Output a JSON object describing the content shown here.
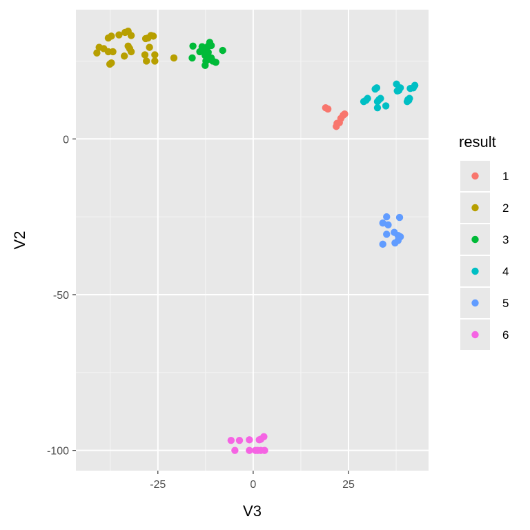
{
  "chart_data": {
    "type": "scatter",
    "xlabel": "V3",
    "ylabel": "V2",
    "xlim": [
      -46.5,
      46
    ],
    "ylim": [
      -106.5,
      41.5
    ],
    "x_ticks": [
      -25,
      0,
      25
    ],
    "x_tick_labels": [
      "-25",
      "0",
      "25"
    ],
    "y_ticks": [
      -100,
      -50,
      0
    ],
    "y_tick_labels": [
      "-100",
      "-50",
      "0"
    ],
    "grid": true,
    "panel_background": "#e8e8e8",
    "legend": {
      "title": "result",
      "placement": "right",
      "entries": [
        "1",
        "2",
        "3",
        "4",
        "5",
        "6"
      ]
    },
    "series": [
      {
        "name": "1",
        "color": "#f8766d",
        "points": [
          [
            19.0,
            10.0
          ],
          [
            19.6,
            9.6
          ],
          [
            22.0,
            5.0
          ],
          [
            21.8,
            4.0
          ],
          [
            23.0,
            6.6
          ],
          [
            23.6,
            7.6
          ],
          [
            24.0,
            8.0
          ],
          [
            22.6,
            5.2
          ]
        ]
      },
      {
        "name": "2",
        "color": "#b79f00",
        "points": [
          [
            -41.0,
            27.6
          ],
          [
            -40.4,
            29.4
          ],
          [
            -39.2,
            29.0
          ],
          [
            -38.0,
            32.4
          ],
          [
            -37.2,
            33.0
          ],
          [
            -38.0,
            28.0
          ],
          [
            -36.8,
            28.0
          ],
          [
            -37.2,
            24.4
          ],
          [
            -37.6,
            24.0
          ],
          [
            -35.2,
            33.4
          ],
          [
            -33.6,
            34.2
          ],
          [
            -32.8,
            34.6
          ],
          [
            -33.8,
            26.6
          ],
          [
            -32.8,
            29.8
          ],
          [
            -32.4,
            29.0
          ],
          [
            -32.0,
            28.0
          ],
          [
            -32.0,
            33.2
          ],
          [
            -28.2,
            32.2
          ],
          [
            -27.6,
            32.4
          ],
          [
            -26.8,
            33.2
          ],
          [
            -26.2,
            33.0
          ],
          [
            -28.4,
            27.0
          ],
          [
            -28.0,
            25.0
          ],
          [
            -27.2,
            29.4
          ],
          [
            -25.8,
            27.0
          ],
          [
            -25.8,
            25.0
          ],
          [
            -20.8,
            26.0
          ]
        ]
      },
      {
        "name": "3",
        "color": "#00ba38",
        "points": [
          [
            -15.8,
            29.8
          ],
          [
            -16.0,
            26.0
          ],
          [
            -14.0,
            28.0
          ],
          [
            -13.4,
            29.6
          ],
          [
            -12.4,
            29.0
          ],
          [
            -11.8,
            29.8
          ],
          [
            -11.4,
            31.0
          ],
          [
            -11.0,
            30.0
          ],
          [
            -13.0,
            28.6
          ],
          [
            -12.6,
            26.8
          ],
          [
            -11.8,
            27.8
          ],
          [
            -12.4,
            25.0
          ],
          [
            -12.0,
            25.4
          ],
          [
            -12.6,
            23.6
          ],
          [
            -11.0,
            26.0
          ],
          [
            -10.6,
            25.0
          ],
          [
            -9.8,
            24.6
          ],
          [
            -8.0,
            28.4
          ],
          [
            -12.0,
            27.2
          ]
        ]
      },
      {
        "name": "4",
        "color": "#00bfc4",
        "points": [
          [
            29.0,
            12.0
          ],
          [
            29.6,
            12.4
          ],
          [
            30.0,
            13.0
          ],
          [
            32.0,
            16.0
          ],
          [
            32.4,
            16.4
          ],
          [
            32.6,
            12.0
          ],
          [
            33.0,
            12.6
          ],
          [
            33.4,
            13.0
          ],
          [
            32.6,
            10.0
          ],
          [
            34.8,
            10.6
          ],
          [
            37.6,
            17.6
          ],
          [
            37.8,
            15.4
          ],
          [
            38.6,
            16.4
          ],
          [
            38.2,
            15.6
          ],
          [
            40.4,
            12.0
          ],
          [
            40.6,
            12.6
          ],
          [
            41.0,
            13.0
          ],
          [
            41.2,
            16.2
          ],
          [
            42.0,
            16.4
          ],
          [
            42.4,
            17.2
          ],
          [
            40.8,
            12.4
          ]
        ]
      },
      {
        "name": "5",
        "color": "#619cff",
        "points": [
          [
            35.0,
            -25.0
          ],
          [
            34.0,
            -27.0
          ],
          [
            35.4,
            -27.6
          ],
          [
            35.0,
            -30.6
          ],
          [
            37.0,
            -30.0
          ],
          [
            38.4,
            -25.2
          ],
          [
            38.0,
            -31.0
          ],
          [
            38.6,
            -31.4
          ],
          [
            38.0,
            -32.6
          ],
          [
            37.2,
            -33.4
          ],
          [
            34.0,
            -33.8
          ]
        ]
      },
      {
        "name": "6",
        "color": "#f564e3",
        "points": [
          [
            -5.8,
            -96.8
          ],
          [
            -3.6,
            -96.8
          ],
          [
            -1.0,
            -96.6
          ],
          [
            1.6,
            -96.6
          ],
          [
            2.0,
            -96.4
          ],
          [
            2.8,
            -95.6
          ],
          [
            -4.8,
            -100.0
          ],
          [
            -1.0,
            -100.0
          ],
          [
            0.6,
            -100.0
          ],
          [
            1.2,
            -100.0
          ],
          [
            2.0,
            -100.0
          ],
          [
            3.0,
            -100.0
          ]
        ]
      }
    ]
  }
}
